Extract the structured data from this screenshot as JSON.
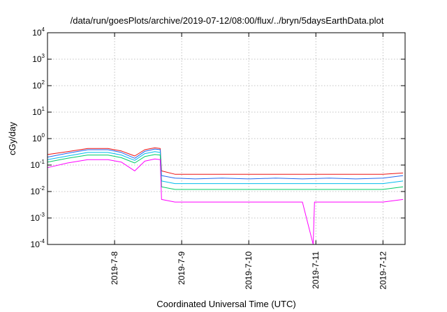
{
  "chart_data": {
    "type": "line",
    "title": "/data/run/goesPlots/archive/2019-07-12/08:00/flux/../bryn/5daysEarthData.plot",
    "xlabel": "Coordinated Universal Time (UTC)",
    "ylabel": "cGy/day",
    "y_scale": "log",
    "ylim": [
      0.0001,
      10000
    ],
    "xlim": [
      0,
      5.33
    ],
    "grid": true,
    "x_ticks": [
      {
        "pos": 1,
        "label": "2019-7-8"
      },
      {
        "pos": 2,
        "label": "2019-7-9"
      },
      {
        "pos": 3,
        "label": "2019-7-10"
      },
      {
        "pos": 4,
        "label": "2019-7-11"
      },
      {
        "pos": 5,
        "label": "2019-7-12"
      }
    ],
    "y_ticks": [
      {
        "value": 0.0001,
        "base": "10",
        "exp": "-4"
      },
      {
        "value": 0.001,
        "base": "10",
        "exp": "-3"
      },
      {
        "value": 0.01,
        "base": "10",
        "exp": "-2"
      },
      {
        "value": 0.1,
        "base": "10",
        "exp": "-1"
      },
      {
        "value": 1,
        "base": "10",
        "exp": "0"
      },
      {
        "value": 10,
        "base": "10",
        "exp": "1"
      },
      {
        "value": 100,
        "base": "10",
        "exp": "2"
      },
      {
        "value": 1000,
        "base": "10",
        "exp": "3"
      },
      {
        "value": 10000,
        "base": "10",
        "exp": "4"
      }
    ],
    "series": [
      {
        "color": "#ee1111",
        "points": [
          [
            0,
            0.25
          ],
          [
            0.3,
            0.32
          ],
          [
            0.6,
            0.42
          ],
          [
            0.9,
            0.42
          ],
          [
            1.1,
            0.34
          ],
          [
            1.3,
            0.22
          ],
          [
            1.45,
            0.38
          ],
          [
            1.6,
            0.45
          ],
          [
            1.68,
            0.42
          ],
          [
            1.7,
            0.06
          ],
          [
            1.9,
            0.045
          ],
          [
            2.2,
            0.045
          ],
          [
            2.6,
            0.045
          ],
          [
            3.0,
            0.045
          ],
          [
            3.4,
            0.045
          ],
          [
            3.8,
            0.045
          ],
          [
            4.2,
            0.045
          ],
          [
            4.6,
            0.045
          ],
          [
            5.0,
            0.045
          ],
          [
            5.3,
            0.05
          ]
        ]
      },
      {
        "color": "#2266ee",
        "points": [
          [
            0,
            0.2
          ],
          [
            0.3,
            0.28
          ],
          [
            0.6,
            0.38
          ],
          [
            0.9,
            0.38
          ],
          [
            1.1,
            0.3
          ],
          [
            1.3,
            0.18
          ],
          [
            1.45,
            0.33
          ],
          [
            1.6,
            0.4
          ],
          [
            1.68,
            0.38
          ],
          [
            1.7,
            0.04
          ],
          [
            1.9,
            0.032
          ],
          [
            2.2,
            0.03
          ],
          [
            2.6,
            0.032
          ],
          [
            3.0,
            0.03
          ],
          [
            3.4,
            0.032
          ],
          [
            3.8,
            0.03
          ],
          [
            4.2,
            0.032
          ],
          [
            4.6,
            0.03
          ],
          [
            5.0,
            0.032
          ],
          [
            5.3,
            0.04
          ]
        ]
      },
      {
        "color": "#00bbee",
        "points": [
          [
            0,
            0.16
          ],
          [
            0.3,
            0.22
          ],
          [
            0.6,
            0.3
          ],
          [
            0.9,
            0.3
          ],
          [
            1.1,
            0.24
          ],
          [
            1.3,
            0.15
          ],
          [
            1.45,
            0.27
          ],
          [
            1.6,
            0.32
          ],
          [
            1.68,
            0.3
          ],
          [
            1.7,
            0.025
          ],
          [
            1.9,
            0.02
          ],
          [
            2.2,
            0.02
          ],
          [
            2.6,
            0.02
          ],
          [
            3.0,
            0.02
          ],
          [
            3.4,
            0.02
          ],
          [
            3.8,
            0.02
          ],
          [
            4.2,
            0.02
          ],
          [
            4.6,
            0.02
          ],
          [
            5.0,
            0.02
          ],
          [
            5.3,
            0.025
          ]
        ]
      },
      {
        "color": "#00cc66",
        "points": [
          [
            0,
            0.13
          ],
          [
            0.3,
            0.18
          ],
          [
            0.6,
            0.24
          ],
          [
            0.9,
            0.24
          ],
          [
            1.1,
            0.19
          ],
          [
            1.3,
            0.12
          ],
          [
            1.45,
            0.21
          ],
          [
            1.6,
            0.25
          ],
          [
            1.68,
            0.24
          ],
          [
            1.7,
            0.015
          ],
          [
            1.9,
            0.012
          ],
          [
            2.2,
            0.012
          ],
          [
            2.6,
            0.012
          ],
          [
            3.0,
            0.012
          ],
          [
            3.4,
            0.012
          ],
          [
            3.8,
            0.012
          ],
          [
            4.2,
            0.012
          ],
          [
            4.6,
            0.012
          ],
          [
            5.0,
            0.012
          ],
          [
            5.3,
            0.015
          ]
        ]
      },
      {
        "color": "#ff00ff",
        "points": [
          [
            0,
            0.08
          ],
          [
            0.3,
            0.12
          ],
          [
            0.6,
            0.16
          ],
          [
            0.9,
            0.16
          ],
          [
            1.1,
            0.13
          ],
          [
            1.3,
            0.06
          ],
          [
            1.45,
            0.14
          ],
          [
            1.6,
            0.17
          ],
          [
            1.68,
            0.16
          ],
          [
            1.7,
            0.005
          ],
          [
            1.9,
            0.004
          ],
          [
            2.2,
            0.004
          ],
          [
            2.6,
            0.004
          ],
          [
            3.0,
            0.004
          ],
          [
            3.4,
            0.004
          ],
          [
            3.8,
            0.004
          ],
          [
            3.96,
            0.0001
          ],
          [
            3.98,
            0.004
          ],
          [
            4.2,
            0.004
          ],
          [
            4.6,
            0.004
          ],
          [
            5.0,
            0.004
          ],
          [
            5.3,
            0.005
          ]
        ]
      }
    ]
  }
}
